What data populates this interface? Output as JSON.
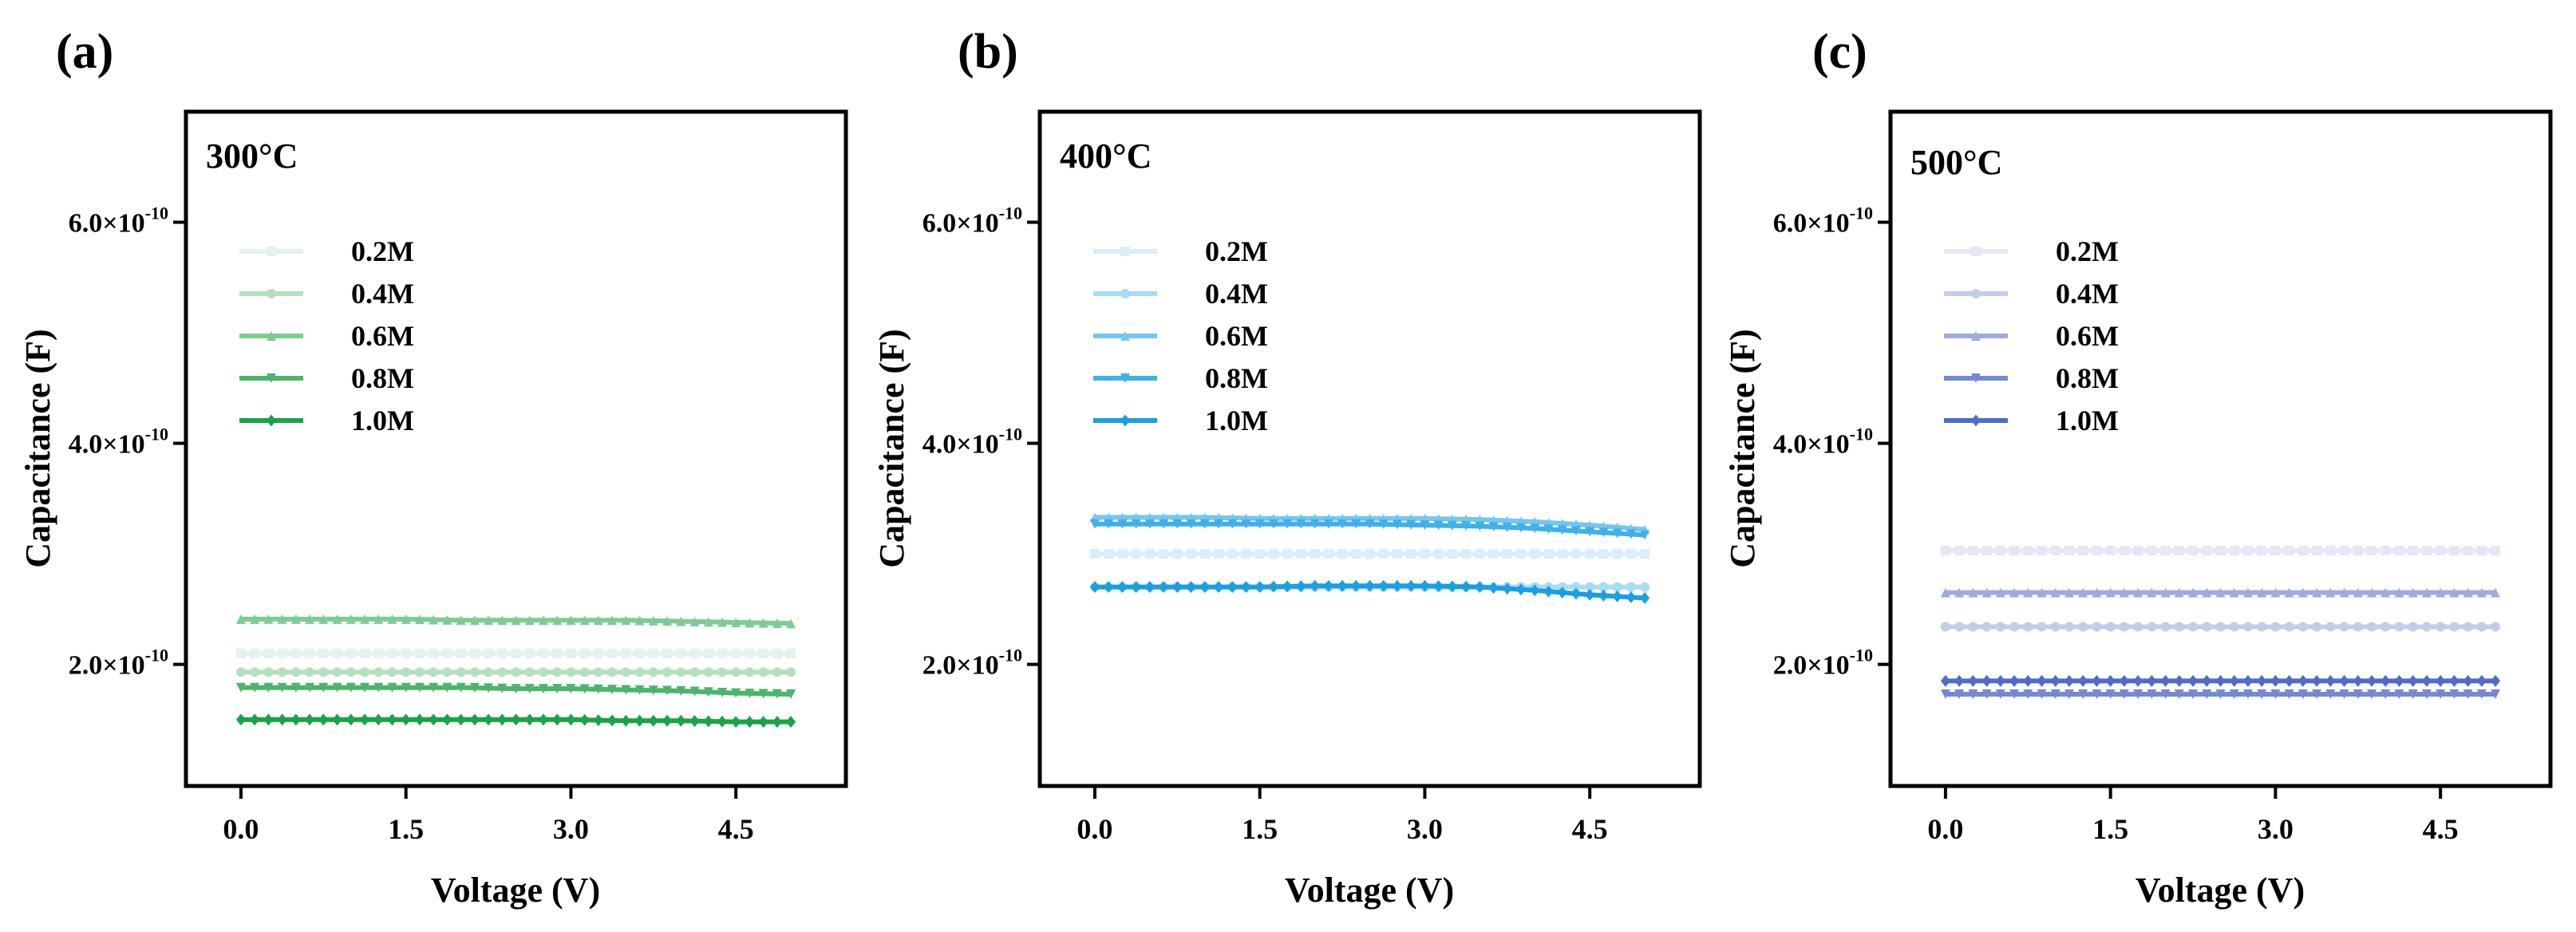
{
  "figure": {
    "panels": [
      {
        "label": "(a)",
        "temperature": "300°C",
        "color": "#1aa34a"
      },
      {
        "label": "(b)",
        "temperature": "400°C",
        "color": "#1a9fe3"
      },
      {
        "label": "(c)",
        "temperature": "500°C",
        "color": "#4f6cc9"
      }
    ]
  },
  "chart_data": [
    {
      "type": "line",
      "panel": "(a)",
      "title": "300°C",
      "xlabel": "Voltage (V)",
      "ylabel": "Capacitance (F)",
      "xlim": [
        -0.5,
        5.5
      ],
      "ylim": [
        0.9,
        7.0
      ],
      "y_scale_text": "×10⁻¹⁰",
      "xticks": [
        0.0,
        1.5,
        3.0,
        4.5
      ],
      "xtick_labels": [
        "0.0",
        "1.5",
        "3.0",
        "4.5"
      ],
      "yticks": [
        2.0,
        4.0,
        6.0
      ],
      "ytick_mantissas": [
        "2.0",
        "4.0",
        "6.0"
      ],
      "ytick_exponent": "-10",
      "legend_position": "upper-center",
      "x": [
        0.0,
        0.5,
        1.0,
        1.5,
        2.0,
        2.5,
        3.0,
        3.5,
        4.0,
        4.5,
        5.0
      ],
      "series": [
        {
          "name": "0.2M",
          "color": "#e3f3e6",
          "marker": "square",
          "values": [
            2.1,
            2.1,
            2.1,
            2.1,
            2.1,
            2.1,
            2.1,
            2.1,
            2.1,
            2.1,
            2.1
          ]
        },
        {
          "name": "0.4M",
          "color": "#b5e0c0",
          "marker": "circle",
          "values": [
            1.93,
            1.93,
            1.93,
            1.93,
            1.93,
            1.93,
            1.93,
            1.93,
            1.93,
            1.93,
            1.93
          ]
        },
        {
          "name": "0.6M",
          "color": "#7fcb94",
          "marker": "triangle-up",
          "values": [
            2.41,
            2.41,
            2.41,
            2.41,
            2.4,
            2.4,
            2.4,
            2.4,
            2.39,
            2.38,
            2.37
          ]
        },
        {
          "name": "0.8M",
          "color": "#4bb56c",
          "marker": "triangle-down",
          "values": [
            1.79,
            1.79,
            1.79,
            1.79,
            1.79,
            1.78,
            1.78,
            1.77,
            1.76,
            1.74,
            1.73
          ]
        },
        {
          "name": "1.0M",
          "color": "#1aa34a",
          "marker": "diamond",
          "values": [
            1.5,
            1.5,
            1.5,
            1.5,
            1.5,
            1.5,
            1.5,
            1.49,
            1.49,
            1.48,
            1.48
          ]
        }
      ]
    },
    {
      "type": "line",
      "panel": "(b)",
      "title": "400°C",
      "xlabel": "Voltage (V)",
      "ylabel": "Capacitance (F)",
      "xlim": [
        -0.5,
        5.5
      ],
      "ylim": [
        0.9,
        7.0
      ],
      "y_scale_text": "×10⁻¹⁰",
      "xticks": [
        0.0,
        1.5,
        3.0,
        4.5
      ],
      "xtick_labels": [
        "0.0",
        "1.5",
        "3.0",
        "4.5"
      ],
      "yticks": [
        2.0,
        4.0,
        6.0
      ],
      "ytick_mantissas": [
        "2.0",
        "4.0",
        "6.0"
      ],
      "ytick_exponent": "-10",
      "legend_position": "upper-center",
      "x": [
        0.0,
        0.5,
        1.0,
        1.5,
        2.0,
        2.5,
        3.0,
        3.5,
        4.0,
        4.5,
        5.0
      ],
      "series": [
        {
          "name": "0.2M",
          "color": "#d9eefb",
          "marker": "square",
          "values": [
            3.0,
            3.0,
            3.0,
            3.0,
            3.0,
            3.0,
            3.0,
            3.0,
            3.0,
            3.0,
            3.0
          ]
        },
        {
          "name": "0.4M",
          "color": "#a8dbf5",
          "marker": "circle",
          "values": [
            2.7,
            2.7,
            2.7,
            2.7,
            2.7,
            2.7,
            2.7,
            2.7,
            2.7,
            2.7,
            2.7
          ]
        },
        {
          "name": "0.6M",
          "color": "#75c6f0",
          "marker": "triangle-up",
          "values": [
            3.33,
            3.33,
            3.33,
            3.32,
            3.32,
            3.32,
            3.32,
            3.31,
            3.29,
            3.26,
            3.22
          ]
        },
        {
          "name": "0.8M",
          "color": "#3fb0ea",
          "marker": "triangle-down",
          "values": [
            3.27,
            3.27,
            3.27,
            3.27,
            3.27,
            3.27,
            3.26,
            3.25,
            3.23,
            3.2,
            3.17
          ]
        },
        {
          "name": "1.0M",
          "color": "#1a9fe3",
          "marker": "diamond",
          "values": [
            2.7,
            2.7,
            2.7,
            2.7,
            2.71,
            2.71,
            2.71,
            2.7,
            2.67,
            2.63,
            2.6
          ]
        }
      ]
    },
    {
      "type": "line",
      "panel": "(c)",
      "title": "500°C",
      "xlabel": "Voltage (V)",
      "ylabel": "Capacitance (F)",
      "xlim": [
        -0.5,
        5.5
      ],
      "ylim": [
        0.9,
        7.0
      ],
      "y_scale_text": "×10⁻¹⁰",
      "xticks": [
        0.0,
        1.5,
        3.0,
        4.5
      ],
      "xtick_labels": [
        "0.0",
        "1.5",
        "3.0",
        "4.5"
      ],
      "yticks": [
        2.0,
        4.0,
        6.0
      ],
      "ytick_mantissas": [
        "2.0",
        "4.0",
        "6.0"
      ],
      "ytick_exponent": "-10",
      "legend_position": "upper-center",
      "x": [
        0.0,
        0.5,
        1.0,
        1.5,
        2.0,
        2.5,
        3.0,
        3.5,
        4.0,
        4.5,
        5.0
      ],
      "series": [
        {
          "name": "0.2M",
          "color": "#e3e7f6",
          "marker": "square",
          "values": [
            3.03,
            3.03,
            3.03,
            3.03,
            3.03,
            3.03,
            3.03,
            3.03,
            3.03,
            3.03,
            3.03
          ]
        },
        {
          "name": "0.4M",
          "color": "#c4ccec",
          "marker": "circle",
          "values": [
            2.34,
            2.34,
            2.34,
            2.34,
            2.34,
            2.34,
            2.34,
            2.34,
            2.34,
            2.34,
            2.34
          ]
        },
        {
          "name": "0.6M",
          "color": "#9eabe0",
          "marker": "triangle-up",
          "values": [
            2.65,
            2.65,
            2.65,
            2.65,
            2.65,
            2.65,
            2.65,
            2.65,
            2.65,
            2.65,
            2.65
          ]
        },
        {
          "name": "0.8M",
          "color": "#7389d4",
          "marker": "triangle-down",
          "values": [
            1.73,
            1.73,
            1.73,
            1.73,
            1.73,
            1.73,
            1.73,
            1.73,
            1.73,
            1.73,
            1.73
          ]
        },
        {
          "name": "1.0M",
          "color": "#4f6cc9",
          "marker": "diamond",
          "values": [
            1.85,
            1.85,
            1.85,
            1.85,
            1.85,
            1.85,
            1.85,
            1.85,
            1.85,
            1.85,
            1.85
          ]
        }
      ]
    }
  ]
}
